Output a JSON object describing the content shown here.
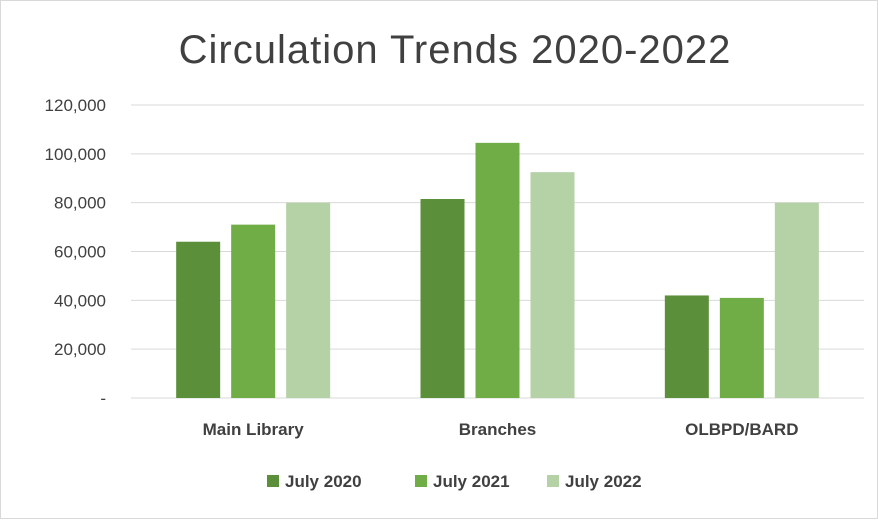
{
  "chart_data": {
    "type": "bar",
    "title": "Circulation Trends 2020-2022",
    "categories": [
      "Main Library",
      "Branches",
      "OLBPD/BARD"
    ],
    "series": [
      {
        "name": "July 2020",
        "values": [
          64000,
          81500,
          42000
        ],
        "color": "#5b8f3a"
      },
      {
        "name": "July 2021",
        "values": [
          71000,
          104500,
          41000
        ],
        "color": "#70ad47"
      },
      {
        "name": "July 2022",
        "values": [
          80000,
          92500,
          80000
        ],
        "color": "#b5d1a6"
      }
    ],
    "ylim": [
      0,
      120000
    ],
    "yticks": [
      0,
      20000,
      40000,
      60000,
      80000,
      100000,
      120000
    ],
    "ytick_labels": [
      "-",
      "20,000",
      "40,000",
      "60,000",
      "80,000",
      "100,000",
      "120,000"
    ],
    "grid": true,
    "legend_position": "bottom"
  }
}
